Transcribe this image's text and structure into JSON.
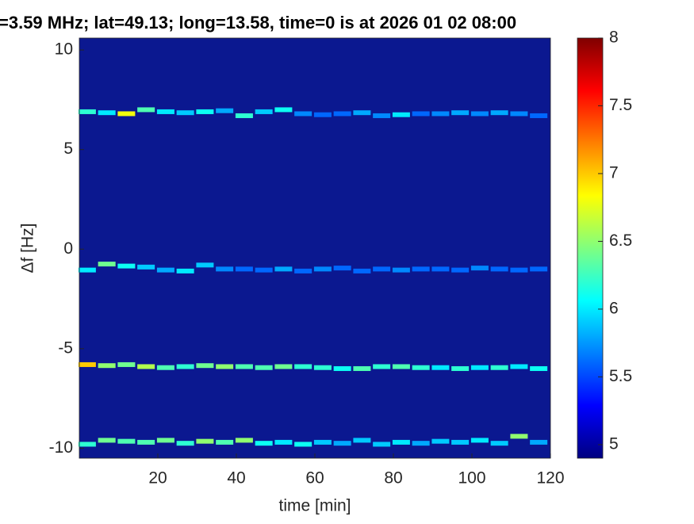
{
  "chart_data": {
    "type": "spectrogram",
    "title": "=3.59 MHz;  lat=49.13; long=13.58, time=0 is at 2026 01 02 08:00",
    "x_label": "time [min]",
    "y_label": "Δf [Hz]",
    "xlim": [
      0,
      120
    ],
    "ylim": [
      -10.5,
      10.6
    ],
    "xticks": [
      20,
      40,
      60,
      80,
      100,
      120
    ],
    "yticks": [
      -10,
      -5,
      0,
      5,
      10
    ],
    "colormap": "jet",
    "clim": [
      4.9,
      8
    ],
    "cticks": [
      5,
      5.5,
      6,
      6.5,
      7,
      7.5,
      8
    ],
    "x": [
      2,
      7,
      12,
      17,
      22,
      27,
      32,
      37,
      42,
      47,
      52,
      57,
      62,
      67,
      72,
      77,
      82,
      87,
      92,
      97,
      102,
      107,
      112,
      117
    ],
    "series": [
      {
        "y": [
          6.9,
          6.85,
          6.8,
          7.0,
          6.9,
          6.85,
          6.9,
          6.95,
          6.7,
          6.9,
          7.0,
          6.8,
          6.75,
          6.8,
          6.85,
          6.7,
          6.75,
          6.8,
          6.8,
          6.85,
          6.8,
          6.85,
          6.8,
          6.7
        ],
        "values": [
          6.2,
          6.0,
          6.8,
          6.3,
          6.0,
          5.9,
          6.1,
          5.8,
          6.2,
          5.9,
          6.1,
          5.7,
          5.6,
          5.6,
          5.8,
          5.7,
          6.0,
          5.6,
          5.7,
          5.8,
          5.7,
          5.8,
          5.7,
          5.6
        ]
      },
      {
        "y": [
          -1.05,
          -0.75,
          -0.85,
          -0.9,
          -1.05,
          -1.1,
          -0.8,
          -1.0,
          -1.0,
          -1.05,
          -1.0,
          -1.1,
          -1.0,
          -0.95,
          -1.1,
          -1.0,
          -1.05,
          -1.0,
          -1.0,
          -1.05,
          -0.95,
          -1.0,
          -1.05,
          -1.0
        ],
        "values": [
          6.0,
          6.4,
          6.1,
          5.9,
          5.8,
          6.0,
          5.9,
          5.7,
          5.6,
          5.6,
          5.8,
          5.6,
          5.7,
          5.6,
          5.6,
          5.6,
          5.7,
          5.6,
          5.6,
          5.6,
          5.7,
          5.6,
          5.6,
          5.6
        ]
      },
      {
        "y": [
          -5.8,
          -5.85,
          -5.8,
          -5.9,
          -5.95,
          -5.9,
          -5.85,
          -5.9,
          -5.9,
          -5.95,
          -5.9,
          -5.9,
          -5.95,
          -6.0,
          -6.0,
          -5.9,
          -5.9,
          -5.95,
          -5.95,
          -6.0,
          -5.95,
          -5.95,
          -5.9,
          -6.0
        ],
        "values": [
          7.0,
          6.5,
          6.4,
          6.6,
          6.3,
          6.2,
          6.4,
          6.5,
          6.3,
          6.3,
          6.4,
          6.2,
          6.2,
          6.1,
          6.3,
          6.2,
          6.3,
          6.2,
          6.0,
          6.2,
          6.0,
          6.2,
          6.0,
          6.1
        ]
      },
      {
        "y": [
          -9.8,
          -9.6,
          -9.65,
          -9.7,
          -9.6,
          -9.75,
          -9.65,
          -9.7,
          -9.6,
          -9.75,
          -9.7,
          -9.8,
          -9.7,
          -9.75,
          -9.6,
          -9.8,
          -9.7,
          -9.75,
          -9.65,
          -9.7,
          -9.6,
          -9.75,
          -9.4,
          -9.7
        ],
        "values": [
          6.2,
          6.4,
          6.3,
          6.3,
          6.4,
          6.2,
          6.5,
          6.3,
          6.5,
          6.1,
          6.0,
          6.1,
          5.9,
          5.8,
          5.9,
          5.9,
          6.0,
          5.8,
          5.9,
          5.9,
          6.0,
          5.9,
          6.5,
          5.8
        ]
      }
    ]
  }
}
